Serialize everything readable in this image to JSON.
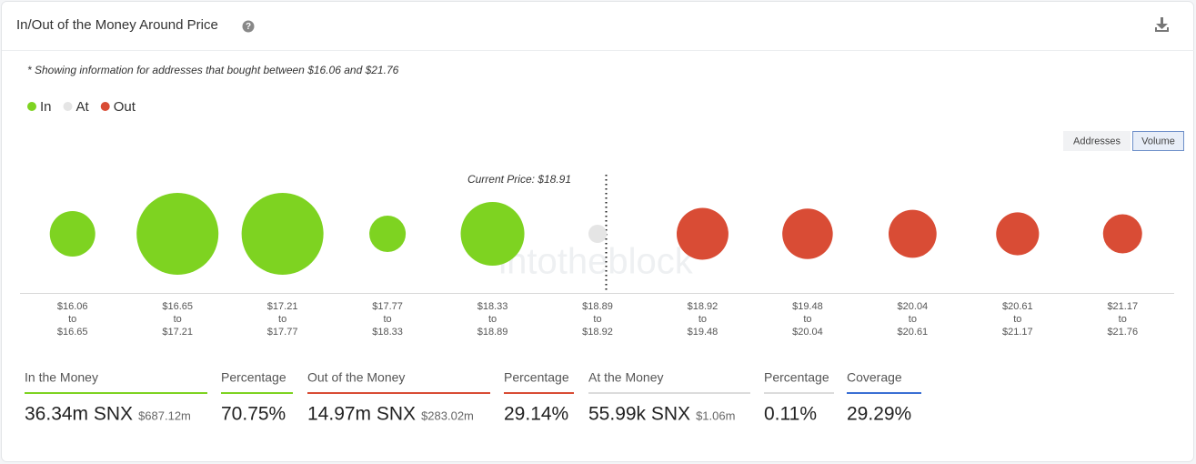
{
  "header": {
    "title": "In/Out of the Money Around Price"
  },
  "note": "* Showing information for addresses that bought between $16.06 and $21.76",
  "toggle": [
    "Addresses",
    "Volume"
  ],
  "watermark": "intotheblock",
  "chart_data": {
    "type": "bubble",
    "categories": [
      [
        "$16.06",
        "to",
        "$16.65"
      ],
      [
        "$16.65",
        "to",
        "$17.21"
      ],
      [
        "$17.21",
        "to",
        "$17.77"
      ],
      [
        "$17.77",
        "to",
        "$18.33"
      ],
      [
        "$18.33",
        "to",
        "$18.89"
      ],
      [
        "$18.89",
        "to",
        "$18.92"
      ],
      [
        "$18.92",
        "to",
        "$19.48"
      ],
      [
        "$19.48",
        "to",
        "$20.04"
      ],
      [
        "$20.04",
        "to",
        "$20.61"
      ],
      [
        "$20.61",
        "to",
        "$21.17"
      ],
      [
        "$21.17",
        "to",
        "$21.76"
      ]
    ],
    "series": [
      {
        "name": "In",
        "color": "#7ed321",
        "values": [
          2.76,
          12.68,
          12.68,
          1.41,
          6.82,
          null,
          null,
          null,
          null,
          null,
          null
        ]
      },
      {
        "name": "At",
        "color": "#e5e5e5",
        "values": [
          null,
          null,
          null,
          null,
          null,
          0.056,
          null,
          null,
          null,
          null,
          null
        ]
      },
      {
        "name": "Out",
        "color": "#d94c35",
        "values": [
          null,
          null,
          null,
          null,
          null,
          null,
          3.96,
          3.7,
          3.21,
          2.33,
          1.76
        ]
      }
    ],
    "annotation": "Current Price: $18.91",
    "legend": "top-left"
  },
  "stats": [
    {
      "label": "In the Money",
      "value": "36.34m SNX",
      "sub": "$687.12m",
      "color": "#7ed321"
    },
    {
      "label": "Percentage",
      "value": "70.75%",
      "color": "#7ed321"
    },
    {
      "label": "Out of the Money",
      "value": "14.97m SNX",
      "sub": "$283.02m",
      "color": "#d94c35"
    },
    {
      "label": "Percentage",
      "value": "29.14%",
      "color": "#d94c35"
    },
    {
      "label": "At the Money",
      "value": "55.99k SNX",
      "sub": "$1.06m",
      "color": "#dcdcdc"
    },
    {
      "label": "Percentage",
      "value": "0.11%",
      "color": "#dcdcdc"
    },
    {
      "label": "Coverage",
      "value": "29.29%",
      "color": "#3b6fd4"
    }
  ]
}
